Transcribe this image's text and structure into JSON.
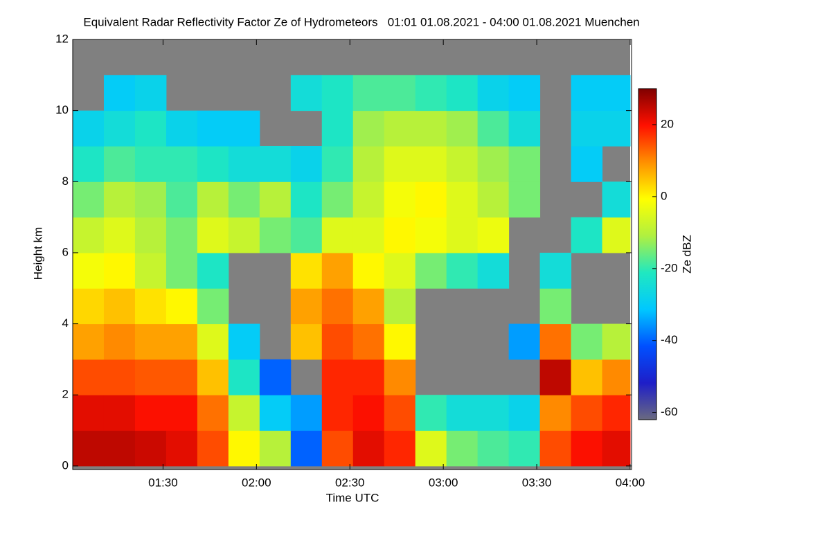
{
  "chart_data": {
    "type": "heatmap",
    "title": "Equivalent Radar Reflectivity Factor Ze of Hydrometeors   01:01 01.08.2021 - 04:00 01.08.2021 Muenchen",
    "xlabel": "Time UTC",
    "ylabel": "Height km",
    "colorbar_label": "Ze dBZ",
    "xlim": [
      61,
      240
    ],
    "ylim": [
      -0.1,
      12
    ],
    "xticks": [
      {
        "value": 90,
        "label": "01:30"
      },
      {
        "value": 120,
        "label": "02:00"
      },
      {
        "value": 150,
        "label": "02:30"
      },
      {
        "value": 180,
        "label": "03:00"
      },
      {
        "value": 210,
        "label": "03:30"
      },
      {
        "value": 240,
        "label": "04:00"
      }
    ],
    "yticks": [
      0,
      2,
      4,
      6,
      8,
      10,
      12
    ],
    "clim": [
      -62,
      30
    ],
    "cticks": [
      20,
      0,
      -20,
      -40,
      -60
    ],
    "colormap": [
      "#6a6a80",
      "#1e1ec8",
      "#0050ff",
      "#00c8ff",
      "#20e8c0",
      "#b0f040",
      "#ffff00",
      "#ff9000",
      "#ff1000",
      "#800000"
    ],
    "background_color": "#808080",
    "x_edges": [
      61,
      71,
      81,
      91,
      101,
      111,
      121,
      131,
      141,
      151,
      161,
      171,
      181,
      191,
      201,
      211,
      221,
      231,
      240
    ],
    "y_edges": [
      0,
      1,
      2,
      3,
      4,
      5,
      6,
      7,
      8,
      9,
      10,
      11,
      12
    ],
    "z": [
      [
        25,
        22,
        15,
        8,
        3,
        -2,
        -8,
        -15,
        -22,
        -28,
        null,
        null
      ],
      [
        25,
        22,
        15,
        10,
        5,
        0,
        -5,
        -10,
        -18,
        -25,
        -30,
        null
      ],
      [
        24,
        20,
        14,
        8,
        2,
        -8,
        -10,
        -12,
        -20,
        -22,
        -28,
        null
      ],
      [
        22,
        20,
        14,
        8,
        0,
        -15,
        -15,
        -18,
        -20,
        -28,
        null,
        null
      ],
      [
        15,
        12,
        5,
        -5,
        -15,
        -22,
        -5,
        -10,
        -22,
        -30,
        null,
        null
      ],
      [
        0,
        -8,
        -22,
        -30,
        null,
        null,
        -8,
        -15,
        -25,
        -30,
        null,
        null
      ],
      [
        -10,
        -30,
        -40,
        null,
        null,
        null,
        -15,
        -10,
        -25,
        null,
        null,
        null
      ],
      [
        -40,
        -35,
        null,
        5,
        8,
        2,
        -18,
        -22,
        -28,
        null,
        -25,
        null
      ],
      [
        15,
        18,
        18,
        15,
        12,
        8,
        -5,
        -15,
        -20,
        -22,
        -22,
        null
      ],
      [
        22,
        20,
        18,
        12,
        8,
        0,
        -5,
        -8,
        -10,
        -12,
        -18,
        null
      ],
      [
        18,
        15,
        10,
        0,
        -10,
        -5,
        0,
        -2,
        -5,
        -10,
        -18,
        null
      ],
      [
        -5,
        -20,
        null,
        null,
        null,
        -15,
        -2,
        0,
        -5,
        -10,
        -20,
        null
      ],
      [
        -15,
        -25,
        null,
        null,
        null,
        -20,
        -5,
        -5,
        -8,
        -12,
        -22,
        null
      ],
      [
        -18,
        -25,
        null,
        null,
        null,
        -25,
        -3,
        -10,
        -12,
        -18,
        -28,
        null
      ],
      [
        -20,
        -28,
        null,
        -35,
        null,
        null,
        null,
        -15,
        -15,
        -25,
        -30,
        null
      ],
      [
        15,
        10,
        25,
        12,
        -15,
        -25,
        null,
        null,
        null,
        null,
        null,
        null
      ],
      [
        20,
        15,
        5,
        -15,
        null,
        null,
        -22,
        null,
        -30,
        -28,
        -30,
        null
      ],
      [
        22,
        18,
        10,
        -10,
        null,
        null,
        -5,
        -25,
        null,
        -28,
        -30,
        null
      ]
    ]
  }
}
